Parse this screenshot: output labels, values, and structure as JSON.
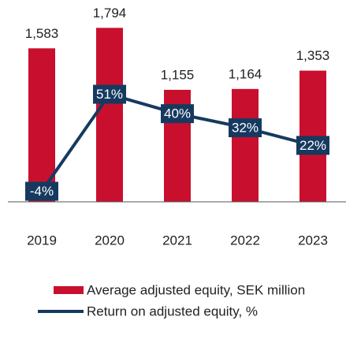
{
  "chart_data": {
    "type": "bar_line",
    "categories": [
      "2019",
      "2020",
      "2021",
      "2022",
      "2023"
    ],
    "series": [
      {
        "name": "Average adjusted equity, SEK million",
        "color": "#c8102e",
        "type": "bar",
        "values": [
          1583,
          1794,
          1155,
          1164,
          1353
        ],
        "value_labels": [
          "1,583",
          "1,794",
          "1,155",
          "1,164",
          "1,353"
        ]
      },
      {
        "name": "Return on adjusted equity, %",
        "color": "#163a5f",
        "type": "line",
        "axis": "y2",
        "values": [
          -4,
          51,
          40,
          32,
          22
        ],
        "value_labels": [
          "-4%",
          "51%",
          "40%",
          "32%",
          "22%"
        ]
      }
    ],
    "ylim": [
      0,
      2000
    ],
    "y2lim": [
      -10,
      100
    ]
  }
}
